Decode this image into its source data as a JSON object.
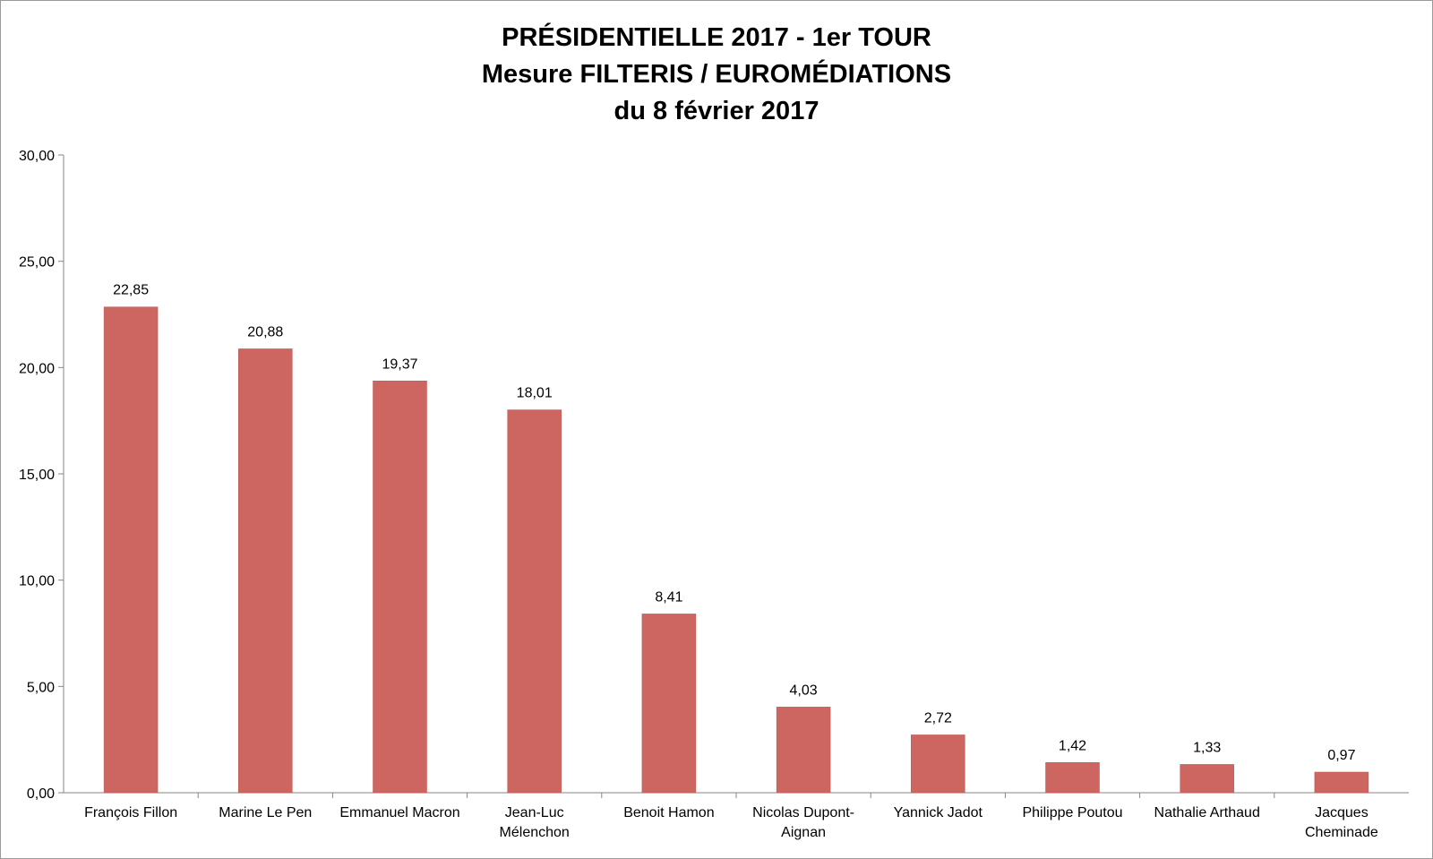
{
  "chart_data": {
    "type": "bar",
    "title_lines": [
      "PRÉSIDENTIELLE 2017 - 1er TOUR",
      "Mesure FILTERIS / EUROMÉDIATIONS",
      "du 8 février 2017"
    ],
    "xlabel": "",
    "ylabel": "",
    "ylim": [
      0,
      30
    ],
    "yticks": [
      "0,00",
      "5,00",
      "10,00",
      "15,00",
      "20,00",
      "25,00",
      "30,00"
    ],
    "grid": false,
    "legend": "none",
    "bar_color": "#cd6660",
    "categories": [
      [
        "François Fillon"
      ],
      [
        "Marine Le Pen"
      ],
      [
        "Emmanuel Macron"
      ],
      [
        "Jean-Luc",
        "Mélenchon"
      ],
      [
        "Benoit Hamon"
      ],
      [
        "Nicolas Dupont-",
        "Aignan"
      ],
      [
        "Yannick Jadot"
      ],
      [
        "Philippe Poutou"
      ],
      [
        "Nathalie Arthaud"
      ],
      [
        "Jacques",
        "Cheminade"
      ]
    ],
    "values": [
      22.85,
      20.88,
      19.37,
      18.01,
      8.41,
      4.03,
      2.72,
      1.42,
      1.33,
      0.97
    ],
    "value_labels": [
      "22,85",
      "20,88",
      "19,37",
      "18,01",
      "8,41",
      "4,03",
      "2,72",
      "1,42",
      "1,33",
      "0,97"
    ]
  }
}
